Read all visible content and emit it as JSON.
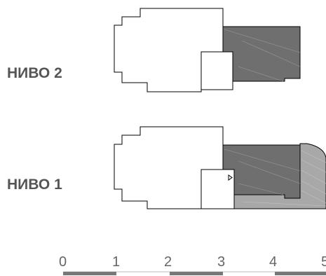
{
  "levels": [
    {
      "label": "НИВО 2"
    },
    {
      "label": "НИВО 1"
    }
  ],
  "scale": {
    "numbers": [
      "0",
      "1",
      "2",
      "3",
      "4",
      "5"
    ]
  },
  "colors": {
    "dark_fill": "#6f6f6f",
    "light_fill": "#a8a8a8",
    "outline": "#000000",
    "label": "#555555",
    "scale_text": "#666666",
    "scale_bar": "#777777"
  }
}
